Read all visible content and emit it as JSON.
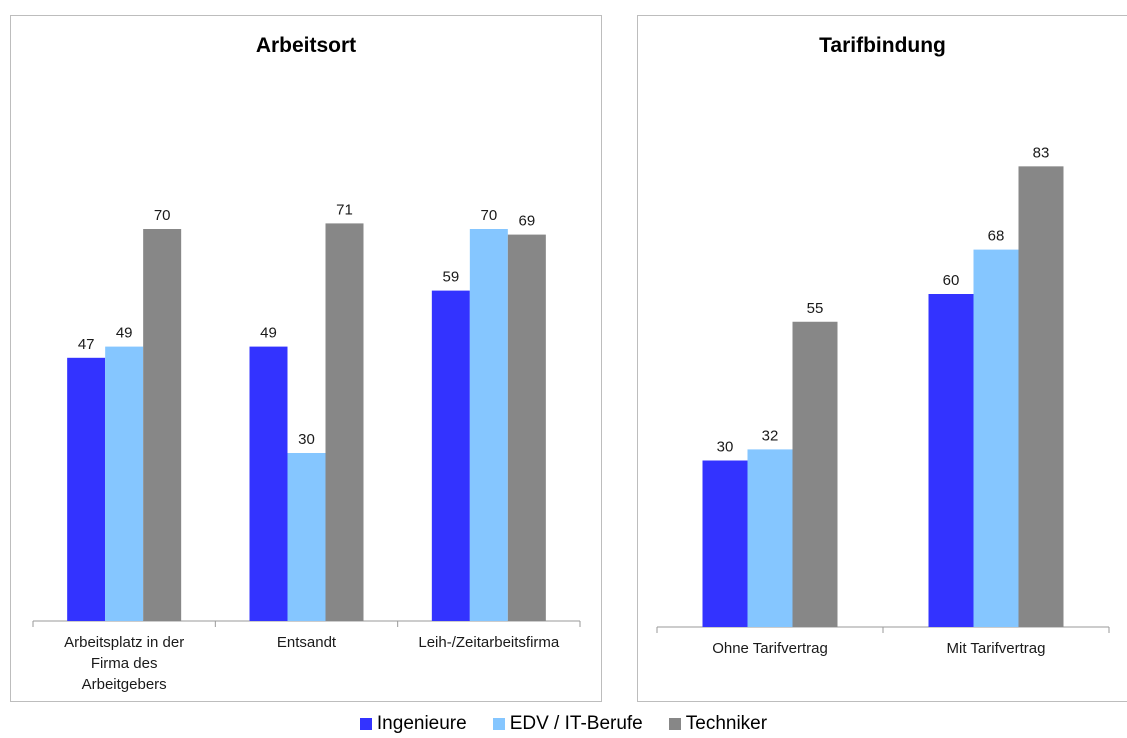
{
  "chart_data": [
    {
      "type": "bar",
      "title": "Arbeitsort",
      "categories": [
        [
          "Arbeitsplatz in der",
          "Firma des",
          "Arbeitgebers"
        ],
        [
          "Entsandt"
        ],
        [
          "Leih-/Zeitarbeitsfirma"
        ]
      ],
      "series": [
        {
          "name": "Ingenieure",
          "values": [
            47,
            49,
            59
          ]
        },
        {
          "name": "EDV / IT-Berufe",
          "values": [
            49,
            30,
            70
          ]
        },
        {
          "name": "Techniker",
          "values": [
            70,
            71,
            69
          ]
        }
      ],
      "ylim": [
        0,
        100
      ]
    },
    {
      "type": "bar",
      "title": "Tarifbindung",
      "categories": [
        [
          "Ohne Tarifvertrag"
        ],
        [
          "Mit Tarifvertrag"
        ]
      ],
      "series": [
        {
          "name": "Ingenieure",
          "values": [
            30,
            60
          ]
        },
        {
          "name": "EDV / IT-Berufe",
          "values": [
            32,
            68
          ]
        },
        {
          "name": "Techniker",
          "values": [
            55,
            83
          ]
        }
      ],
      "ylim": [
        0,
        100
      ]
    }
  ],
  "colors": {
    "Ingenieure": "#3333ff",
    "EDV / IT-Berufe": "#85c6ff",
    "Techniker": "#878787"
  },
  "legend": [
    "Ingenieure",
    "EDV / IT-Berufe",
    "Techniker"
  ]
}
